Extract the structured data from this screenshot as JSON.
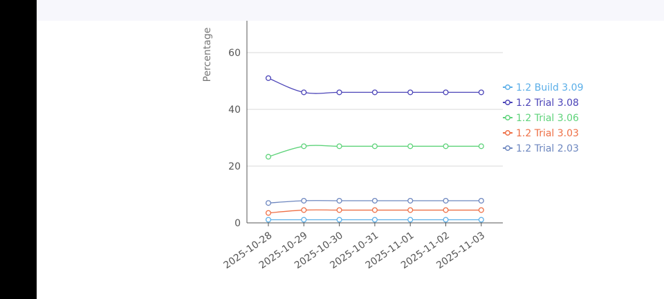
{
  "chart_data": {
    "type": "line",
    "x": [
      "2025-10-28",
      "2025-10-29",
      "2025-10-30",
      "2025-10-31",
      "2025-11-01",
      "2025-11-02",
      "2025-11-03"
    ],
    "ylabel": "Percentage",
    "xlabel": "",
    "title": "",
    "ylim": [
      0,
      70
    ],
    "yticks": [
      0,
      20,
      40,
      60
    ],
    "grid": true,
    "legend_position": "right",
    "series": [
      {
        "name": "1.2 Build 3.09",
        "color": "#5aaee8",
        "values": [
          1.1,
          1.1,
          1.1,
          1.1,
          1.1,
          1.1,
          1.1
        ]
      },
      {
        "name": "1.2 Trial 3.08",
        "color": "#4b44b8",
        "values": [
          51,
          46,
          46,
          46,
          46,
          46,
          46
        ]
      },
      {
        "name": "1.2 Trial 3.06",
        "color": "#5ed37a",
        "values": [
          23.3,
          27,
          27,
          27,
          27,
          27,
          27
        ]
      },
      {
        "name": "1.2 Trial 3.03",
        "color": "#ee6f45",
        "values": [
          3.5,
          4.5,
          4.5,
          4.5,
          4.5,
          4.5,
          4.5
        ]
      },
      {
        "name": "1.2 Trial 2.03",
        "color": "#6c86bf",
        "values": [
          7,
          7.8,
          7.8,
          7.8,
          7.8,
          7.8,
          7.8
        ]
      }
    ]
  }
}
